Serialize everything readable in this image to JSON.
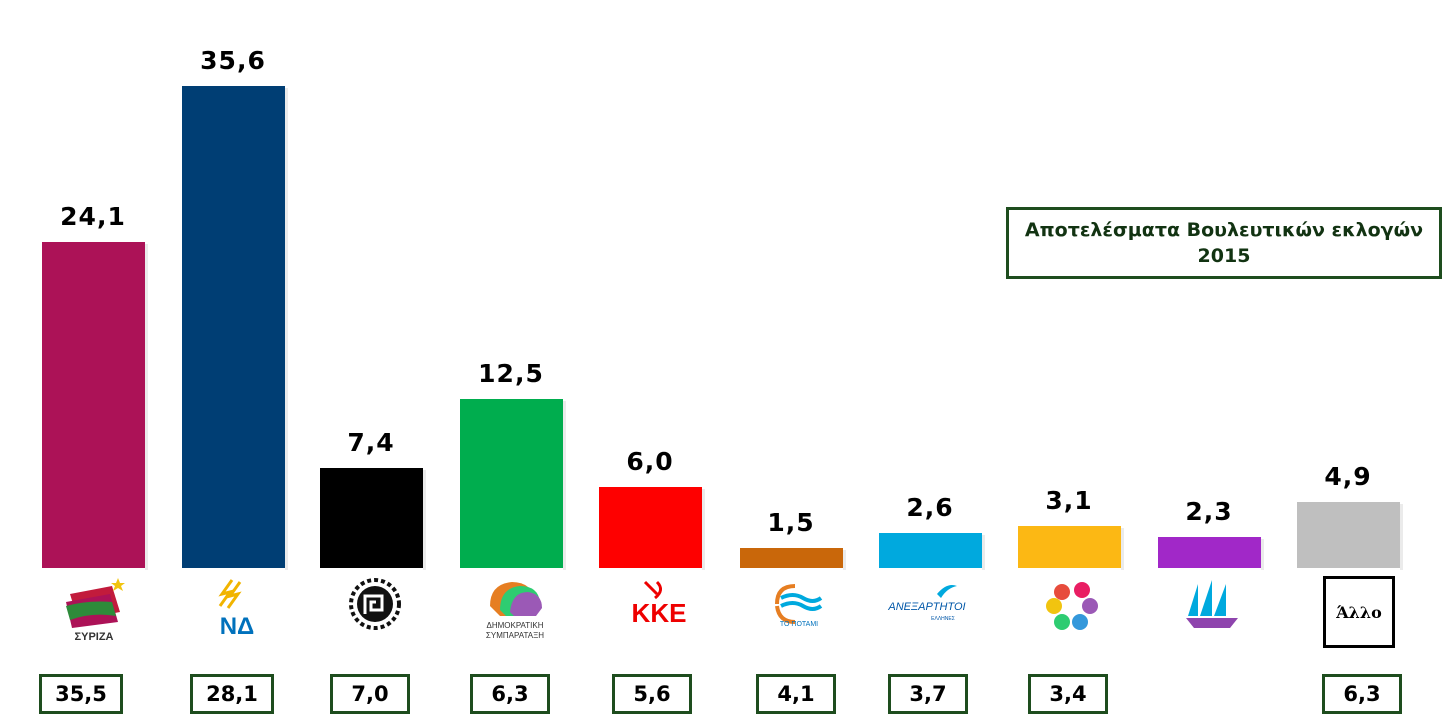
{
  "chart_data": {
    "type": "bar",
    "title": [
      "Αποτελέσματα Βουλευτικών εκλογών",
      "2015"
    ],
    "categories": [
      "ΣΥΡΙΖΑ",
      "ΝΔ",
      "Χρυσή Αυγή",
      "ΔΗΜΟΚΡΑΤΙΚΗ ΣΥΜΠΑΡΑΤΑΞΗ",
      "ΚΚΕ",
      "ΤΟ ΠΟΤΑΜΙ",
      "ΑΝΕΞΑΡΤΗΤΟΙ ΕΛΛΗΝΕΣ",
      "Ένωση Κεντρώων",
      "Λαϊκή Ενότητα",
      "Άλλο"
    ],
    "values": [
      24.1,
      35.6,
      7.4,
      12.5,
      6.0,
      1.5,
      2.6,
      3.1,
      2.3,
      4.9
    ],
    "value_labels": [
      "24,1",
      "35,6",
      "7,4",
      "12,5",
      "6,0",
      "1,5",
      "2,6",
      "3,1",
      "2,3",
      "4,9"
    ],
    "previous_labels": [
      "35,5",
      "28,1",
      "7,0",
      "6,3",
      "5,6",
      "4,1",
      "3,7",
      "3,4",
      "",
      "6,3"
    ],
    "colors": [
      "#ac1257",
      "#003e74",
      "#000000",
      "#00ad4e",
      "#fe0000",
      "#c9670a",
      "#00a9de",
      "#fcb814",
      "#a128c8",
      "#bfbfbf"
    ],
    "ylim": [
      0,
      36
    ],
    "grid": false,
    "legend": "none"
  },
  "logos": {
    "syriza_text": "ΣΥΡΙΖΑ",
    "nd_text": "ΝΔ",
    "dimsy_text1": "ΔΗΜΟΚΡΑΤΙΚΗ",
    "dimsy_text2": "ΣΥΜΠΑΡΑΤΑΞΗ",
    "kke_text": "ΚΚΕ",
    "potami_text": "ΤΟ ΠΟΤΑΜΙ",
    "anel_text1": "ΑΝΕΞΑΡΤΗΤΟΙ",
    "anel_text2": "ΕΛΛΗΝΕΣ",
    "allo_text": "Άλλο"
  }
}
